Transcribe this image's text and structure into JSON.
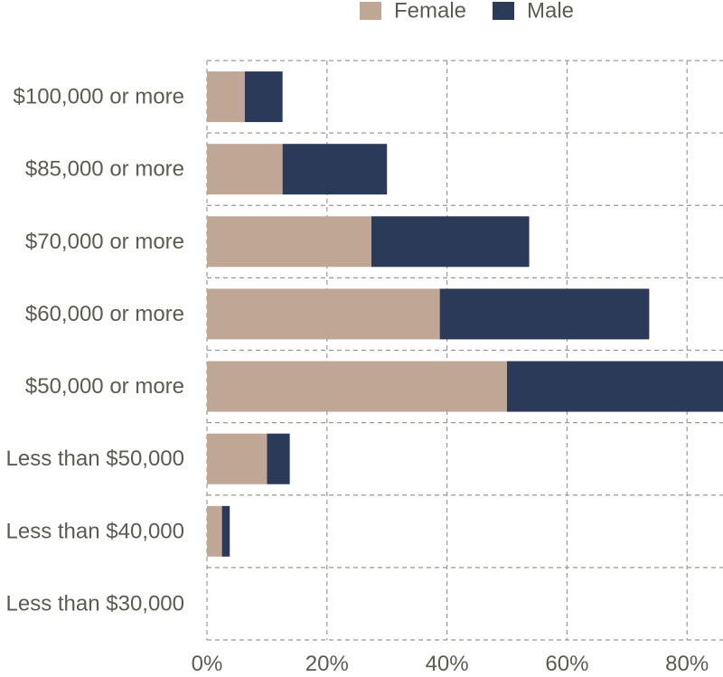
{
  "chart_data": {
    "type": "bar",
    "orientation": "horizontal",
    "stacked": true,
    "categories": [
      "$100,000 or more",
      "$85,000 or more",
      "$70,000 or more",
      "$60,000 or more",
      "$50,000 or more",
      "Less than $50,000",
      "Less than $40,000",
      "Less than $30,000"
    ],
    "series": [
      {
        "name": "Female",
        "color": "#c0a695",
        "values": [
          6.3,
          12.6,
          27.4,
          38.8,
          50.0,
          10.0,
          2.5,
          0
        ]
      },
      {
        "name": "Male",
        "color": "#2c3a5a",
        "values": [
          6.3,
          17.4,
          26.3,
          34.9,
          36.5,
          3.8,
          1.3,
          0
        ]
      }
    ],
    "xlim": [
      0,
      86
    ],
    "xticks": [
      "0%",
      "20%",
      "40%",
      "60%",
      "80%"
    ],
    "xtick_values": [
      0,
      20,
      40,
      60,
      80
    ],
    "grid": true,
    "grid_style": "dashed",
    "legend_position": "top"
  }
}
